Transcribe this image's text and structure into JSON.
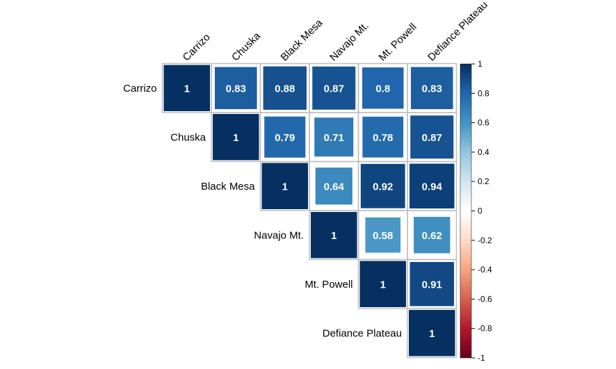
{
  "chart_data": {
    "type": "heatmap",
    "subtype": "upper-triangle correlation plot (square method with numbers)",
    "variables": [
      "Carrizo",
      "Chuska",
      "Black Mesa",
      "Navajo Mt.",
      "Mt. Powell",
      "Defiance Plateau"
    ],
    "matrix": [
      [
        1,
        0.83,
        0.88,
        0.87,
        0.8,
        0.83
      ],
      [
        null,
        1,
        0.79,
        0.71,
        0.78,
        0.87
      ],
      [
        null,
        null,
        1,
        0.64,
        0.92,
        0.94
      ],
      [
        null,
        null,
        null,
        1,
        0.58,
        0.62
      ],
      [
        null,
        null,
        null,
        null,
        1,
        0.91
      ],
      [
        null,
        null,
        null,
        null,
        null,
        1
      ]
    ],
    "value_labels": [
      [
        "1",
        "0.83",
        "0.88",
        "0.87",
        "0.8",
        "0.83"
      ],
      [
        "",
        "1",
        "0.79",
        "0.71",
        "0.78",
        "0.87"
      ],
      [
        "",
        "",
        "1",
        "0.64",
        "0.92",
        "0.94"
      ],
      [
        "",
        "",
        "",
        "1",
        "0.58",
        "0.62"
      ],
      [
        "",
        "",
        "",
        "",
        "1",
        "0.91"
      ],
      [
        "",
        "",
        "",
        "",
        "",
        "1"
      ]
    ],
    "colorbar": {
      "range": [
        -1,
        1
      ],
      "ticks": [
        1,
        0.8,
        0.6,
        0.4,
        0.2,
        0,
        -0.2,
        -0.4,
        -0.6,
        -0.8,
        -1
      ],
      "tick_labels": [
        "1",
        "0.8",
        "0.6",
        "0.4",
        "0.2",
        "0",
        "-0.2",
        "-0.4",
        "-0.6",
        "-0.8",
        "-1"
      ],
      "placement": "right"
    },
    "colormap": {
      "negative_end": "#67001F",
      "stops": [
        {
          "v": -1,
          "color": "#67001F"
        },
        {
          "v": -0.8,
          "color": "#B2182B"
        },
        {
          "v": -0.6,
          "color": "#D6604D"
        },
        {
          "v": -0.4,
          "color": "#F4A582"
        },
        {
          "v": -0.2,
          "color": "#FDDBC7"
        },
        {
          "v": 0,
          "color": "#FFFFFF"
        },
        {
          "v": 0.2,
          "color": "#D1E5F0"
        },
        {
          "v": 0.4,
          "color": "#92C5DE"
        },
        {
          "v": 0.6,
          "color": "#4393C3"
        },
        {
          "v": 0.8,
          "color": "#2166AC"
        },
        {
          "v": 1,
          "color": "#053061"
        }
      ]
    },
    "grid_color": "#BEBEBE"
  }
}
